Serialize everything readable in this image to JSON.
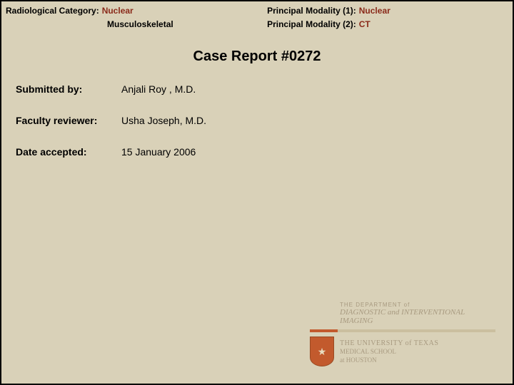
{
  "header": {
    "rad_cat_label": "Radiological Category:",
    "rad_cat_value": "Nuclear",
    "rad_cat_value2": "Musculoskeletal",
    "pm1_label": "Principal Modality (1):",
    "pm1_value": "Nuclear",
    "pm2_label": "Principal Modality (2):",
    "pm2_value": "CT"
  },
  "title": "Case Report #0272",
  "info": {
    "submitted_label": "Submitted by:",
    "submitted_value": "Anjali Roy , M.D.",
    "reviewer_label": "Faculty reviewer:",
    "reviewer_value": "Usha Joseph, M.D.",
    "date_label": "Date accepted:",
    "date_value": "15 January 2006"
  },
  "logo": {
    "dept": "THE DEPARTMENT of",
    "diag": "DIAGNOSTIC and INTERVENTIONAL IMAGING",
    "ut1": "THE UNIVERSITY of TEXAS",
    "ut2": "MEDICAL SCHOOL",
    "ut3": "at HOUSTON"
  }
}
